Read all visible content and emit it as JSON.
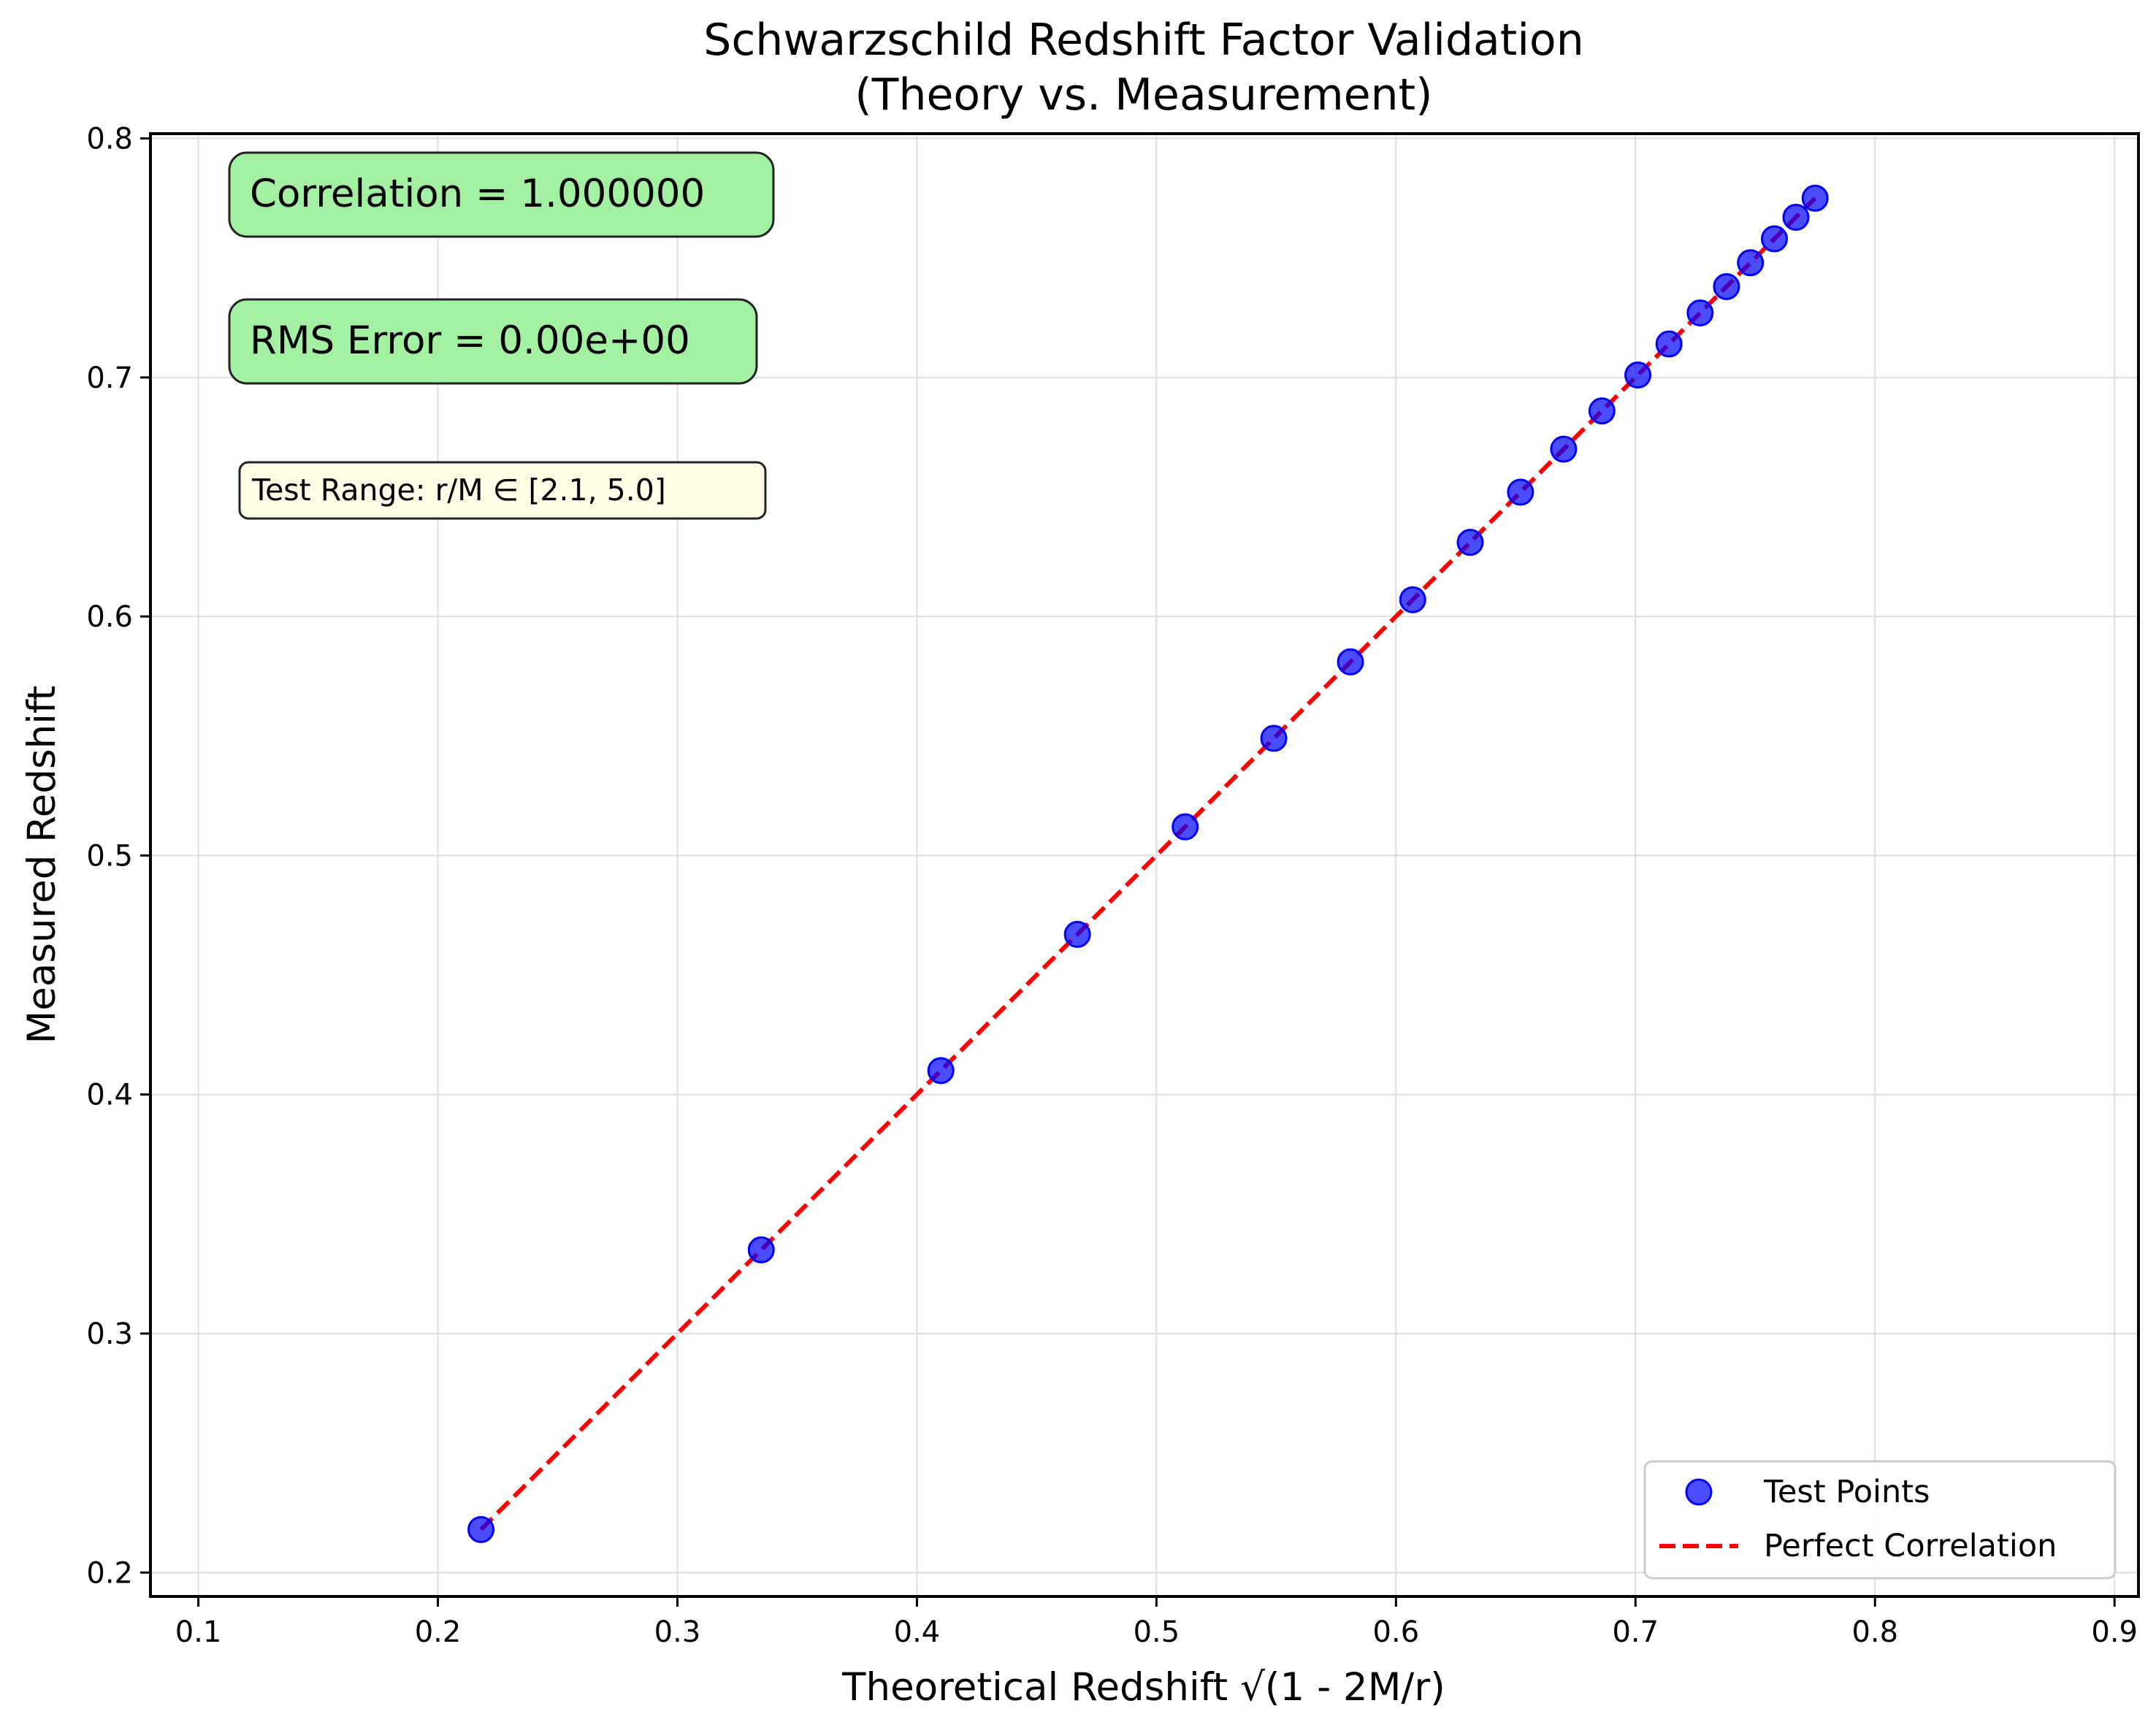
{
  "chart_data": {
    "type": "scatter",
    "title_line1": "Schwarzschild Redshift Factor Validation",
    "title_line2": "(Theory vs. Measurement)",
    "xlabel": "Theoretical Redshift √(1 - 2M/r)",
    "ylabel": "Measured Redshift",
    "xlim": [
      0.08,
      0.91
    ],
    "ylim": [
      0.19,
      0.802
    ],
    "xticks": [
      0.1,
      0.2,
      0.3,
      0.4,
      0.5,
      0.6,
      0.7,
      0.8,
      0.9
    ],
    "xtick_labels": [
      "0.1",
      "0.2",
      "0.3",
      "0.4",
      "0.5",
      "0.6",
      "0.7",
      "0.8",
      "0.9"
    ],
    "yticks": [
      0.2,
      0.3,
      0.4,
      0.5,
      0.6,
      0.7,
      0.8
    ],
    "ytick_labels": [
      "0.2",
      "0.3",
      "0.4",
      "0.5",
      "0.6",
      "0.7",
      "0.8"
    ],
    "grid": true,
    "legend_position": "bottom-right",
    "series": [
      {
        "name": "Test Points",
        "kind": "scatter",
        "color": "#0000ff",
        "x": [
          0.218,
          0.335,
          0.41,
          0.467,
          0.512,
          0.549,
          0.581,
          0.607,
          0.631,
          0.652,
          0.67,
          0.686,
          0.701,
          0.714,
          0.727,
          0.738,
          0.748,
          0.758,
          0.767,
          0.775
        ],
        "y": [
          0.218,
          0.335,
          0.41,
          0.467,
          0.512,
          0.549,
          0.581,
          0.607,
          0.631,
          0.652,
          0.67,
          0.686,
          0.701,
          0.714,
          0.727,
          0.738,
          0.748,
          0.758,
          0.767,
          0.775
        ]
      },
      {
        "name": "Perfect Correlation",
        "kind": "line",
        "style": "dashed",
        "color": "#ff0000",
        "x": [
          0.218,
          0.775
        ],
        "y": [
          0.218,
          0.775
        ]
      }
    ],
    "annotations": [
      {
        "text": "Correlation = 1.000000",
        "bg": "#a3f0a3"
      },
      {
        "text": "RMS Error = 0.00e+00",
        "bg": "#a3f0a3"
      },
      {
        "text": "Test Range: r/M ∈ [2.1, 5.0]",
        "bg": "#fffde6"
      }
    ]
  }
}
